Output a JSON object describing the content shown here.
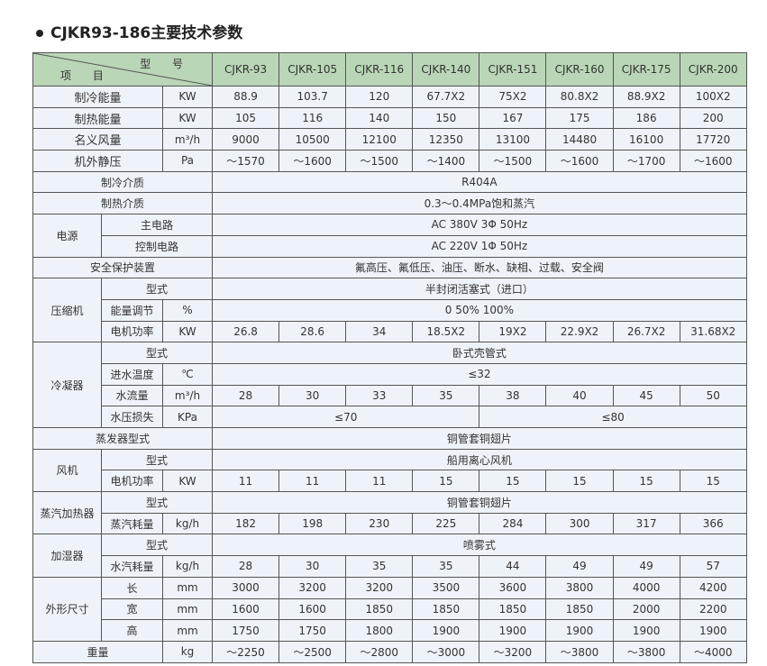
{
  "title": "CJKR93-186主要技术参数",
  "header": {
    "item": "项 目",
    "model": "型 号",
    "models": [
      "CJKR-93",
      "CJKR-105",
      "CJKR-116",
      "CJKR-140",
      "CJKR-151",
      "CJKR-160",
      "CJKR-175",
      "CJKR-200"
    ]
  },
  "performance": [
    {
      "name": "制冷能量",
      "unit": "KW",
      "values": [
        "88.9",
        "103.7",
        "120",
        "67.7X2",
        "75X2",
        "80.8X2",
        "88.9X2",
        "100X2"
      ]
    },
    {
      "name": "制热能量",
      "unit": "KW",
      "values": [
        "105",
        "116",
        "140",
        "150",
        "167",
        "175",
        "186",
        "200"
      ]
    },
    {
      "name": "名义风量",
      "unit": "m³/h",
      "values": [
        "9000",
        "10500",
        "12100",
        "12350",
        "13100",
        "14480",
        "16100",
        "17720"
      ]
    },
    {
      "name": "机外静压",
      "unit": "Pa",
      "values": [
        "～1570",
        "～1600",
        "～1500",
        "～1400",
        "～1500",
        "～1600",
        "～1700",
        "～1600"
      ]
    }
  ],
  "refrigerant": {
    "label": "制冷介质",
    "value": "R404A"
  },
  "heating_medium": {
    "label": "制热介质",
    "value": "0.3～0.4MPa饱和蒸汽"
  },
  "power": {
    "label": "电源",
    "main_label": "主电路",
    "main": "AC 380V 3Φ 50Hz",
    "control_label": "控制电路",
    "control": "AC 220V 1Φ 50Hz"
  },
  "safety": {
    "label": "安全保护装置",
    "value": "氟高压、氟低压、油压、断水、缺相、过载、安全阀"
  },
  "compressor": {
    "label": "压缩机",
    "type_label": "型式",
    "type": "半封闭活塞式（进口）",
    "capacity_label": "能量调节",
    "capacity_unit": "%",
    "capacity": "0  50%  100%",
    "motor_label": "电机功率",
    "motor_unit": "KW",
    "motor": [
      "26.8",
      "28.6",
      "34",
      "18.5X2",
      "19X2",
      "22.9X2",
      "26.7X2",
      "31.68X2"
    ]
  },
  "condenser": {
    "label": "冷凝器",
    "type_label": "型式",
    "type": "卧式壳管式",
    "inlet_label": "进水温度",
    "inlet_unit": "℃",
    "inlet": "≤32",
    "flow_label": "水流量",
    "flow_unit": "m³/h",
    "flow": [
      "28",
      "30",
      "33",
      "35",
      "38",
      "40",
      "45",
      "50"
    ],
    "loss_label": "水压损失",
    "loss_unit": "KPa",
    "loss_a": "≤70",
    "loss_b": "≤80"
  },
  "evaporator": {
    "label": "蒸发器型式",
    "value": "铜管套铜翅片"
  },
  "fan": {
    "label": "风机",
    "type_label": "型式",
    "type": "船用离心风机",
    "motor_label": "电机功率",
    "motor_unit": "KW",
    "motor": [
      "11",
      "11",
      "11",
      "15",
      "15",
      "15",
      "15",
      "15"
    ]
  },
  "steam_heater": {
    "label": "蒸汽加热器",
    "type_label": "型式",
    "type": "铜管套铜翅片",
    "use_label": "蒸汽耗量",
    "use_unit": "kg/h",
    "use": [
      "182",
      "198",
      "230",
      "225",
      "284",
      "300",
      "317",
      "366"
    ]
  },
  "humidifier": {
    "label": "加湿器",
    "type_label": "型式",
    "type": "喷雾式",
    "use_label": "水汽耗量",
    "use_unit": "kg/h",
    "use": [
      "28",
      "30",
      "35",
      "35",
      "44",
      "49",
      "49",
      "57"
    ]
  },
  "dimensions": {
    "label": "外形尺寸",
    "length_label": "长",
    "length_unit": "mm",
    "length": [
      "3000",
      "3200",
      "3200",
      "3500",
      "3600",
      "3800",
      "4000",
      "4200"
    ],
    "width_label": "宽",
    "width_unit": "mm",
    "width": [
      "1600",
      "1600",
      "1850",
      "1850",
      "1850",
      "1850",
      "2000",
      "2200"
    ],
    "height_label": "高",
    "height_unit": "mm",
    "height": [
      "1750",
      "1750",
      "1800",
      "1900",
      "1900",
      "1900",
      "1900",
      "1900"
    ]
  },
  "weight": {
    "label": "重量",
    "unit": "kg",
    "values": [
      "～2250",
      "～2500",
      "～2800",
      "～3000",
      "～3200",
      "～3800",
      "～3800",
      "～4000"
    ]
  }
}
